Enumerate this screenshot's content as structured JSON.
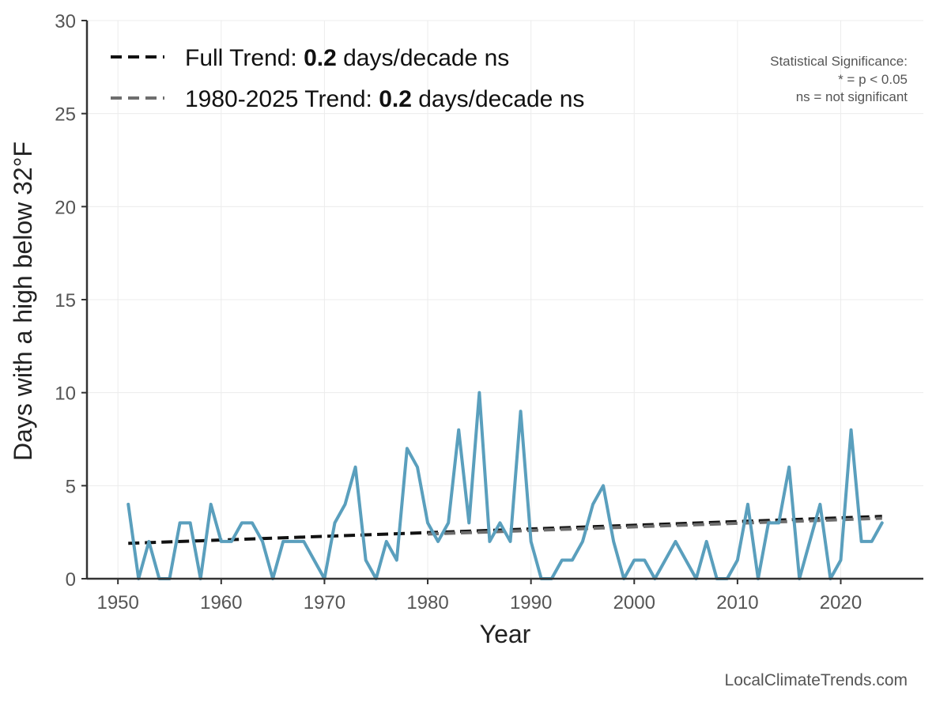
{
  "chart_data": {
    "type": "line",
    "title": "",
    "xlabel": "Year",
    "ylabel": "Days with a high below 32°F",
    "xlim": [
      1947,
      2028
    ],
    "ylim": [
      0,
      30
    ],
    "x_ticks": [
      1950,
      1960,
      1970,
      1980,
      1990,
      2000,
      2010,
      2020
    ],
    "y_ticks": [
      0,
      5,
      10,
      15,
      20,
      25,
      30
    ],
    "grid": true,
    "legend_position": "top-left",
    "series": [
      {
        "name": "Days with a high below 32°F",
        "color": "#5a9fbd",
        "x": [
          1951,
          1952,
          1953,
          1954,
          1955,
          1956,
          1957,
          1958,
          1959,
          1960,
          1961,
          1962,
          1963,
          1964,
          1965,
          1966,
          1967,
          1968,
          1969,
          1970,
          1971,
          1972,
          1973,
          1974,
          1975,
          1976,
          1977,
          1978,
          1979,
          1980,
          1981,
          1982,
          1983,
          1984,
          1985,
          1986,
          1987,
          1988,
          1989,
          1990,
          1991,
          1992,
          1993,
          1994,
          1995,
          1996,
          1997,
          1998,
          1999,
          2000,
          2001,
          2002,
          2003,
          2004,
          2005,
          2006,
          2007,
          2008,
          2009,
          2010,
          2011,
          2012,
          2013,
          2014,
          2015,
          2016,
          2017,
          2018,
          2019,
          2020,
          2021,
          2022,
          2023,
          2024
        ],
        "values": [
          4,
          0,
          2,
          0,
          0,
          3,
          3,
          0,
          4,
          2,
          2,
          3,
          3,
          2,
          0,
          2,
          2,
          2,
          1,
          0,
          3,
          4,
          6,
          1,
          0,
          2,
          1,
          7,
          6,
          3,
          2,
          3,
          8,
          3,
          10,
          2,
          3,
          2,
          9,
          2,
          0,
          0,
          1,
          1,
          2,
          4,
          5,
          2,
          0,
          1,
          1,
          0,
          1,
          2,
          1,
          0,
          2,
          0,
          0,
          1,
          4,
          0,
          3,
          3,
          6,
          0,
          2,
          4,
          0,
          1,
          8,
          2,
          2,
          3
        ]
      }
    ],
    "trends": [
      {
        "name": "Full Trend",
        "label_prefix": "Full Trend: ",
        "value": "0.2",
        "label_suffix": " days/decade ns",
        "x": [
          1951,
          2024
        ],
        "y": [
          1.9,
          3.35
        ],
        "color": "#111111"
      },
      {
        "name": "1980-2025 Trend",
        "label_prefix": "1980-2025 Trend: ",
        "value": "0.2",
        "label_suffix": " days/decade ns",
        "x": [
          1980,
          2024
        ],
        "y": [
          2.4,
          3.25
        ],
        "color": "#6e6e6e"
      }
    ],
    "annotations": {
      "significance_title": "Statistical Significance:",
      "significance_star": "* = p < 0.05",
      "significance_ns": "ns = not significant"
    },
    "footer": "LocalClimateTrends.com"
  }
}
